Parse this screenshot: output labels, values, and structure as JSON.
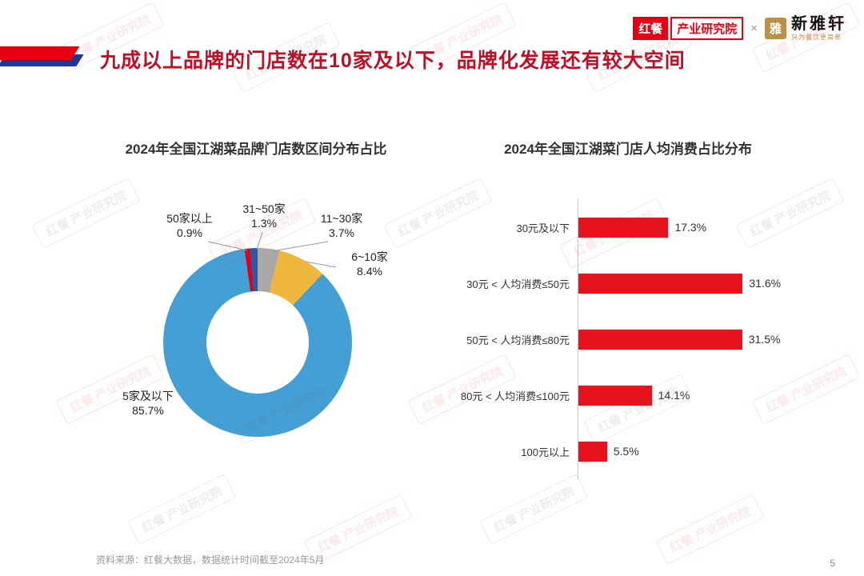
{
  "page": {
    "title": "九成以上品牌的门店数在10家及以下，品牌化发展还有较大空间",
    "source_note": "资料来源：红餐大数据，数据统计时间截至2024年5月",
    "page_number": "5"
  },
  "header": {
    "hongcan_logo": "红餐",
    "hongcan_org": "产业研究院",
    "separator": "×",
    "partner_icon": "雅",
    "partner_name": "新雅轩",
    "partner_tagline": "只为餐饮更简单"
  },
  "watermark": {
    "text": "红餐 产业研究院"
  },
  "colors": {
    "brand_red": "#E60012",
    "title_red": "#C30D23"
  },
  "chart_data": [
    {
      "type": "pie",
      "donut": true,
      "title": "2024年全国江湖菜品牌门店数区间分布占比",
      "labels": [
        "5家及以下",
        "6~10家",
        "11~30家",
        "31~50家",
        "50家以上"
      ],
      "values": [
        85.7,
        8.4,
        3.7,
        1.3,
        0.9
      ],
      "value_labels": [
        "85.7%",
        "8.4%",
        "3.7%",
        "1.3%",
        "0.9%"
      ],
      "colors": [
        "#449FD4",
        "#EFB73E",
        "#A9A9A9",
        "#2B5BA8",
        "#E60012"
      ],
      "legend_position": "none"
    },
    {
      "type": "bar",
      "orientation": "horizontal",
      "title": "2024年全国江湖菜门店人均消费占比分布",
      "categories": [
        "30元及以下",
        "30元 < 人均消费≤50元",
        "50元 < 人均消费≤80元",
        "80元 < 人均消费≤100元",
        "100元以上"
      ],
      "values": [
        17.3,
        31.6,
        31.5,
        14.1,
        5.5
      ],
      "value_labels": [
        "17.3%",
        "31.6%",
        "31.5%",
        "14.1%",
        "5.5%"
      ],
      "bar_color": "#E8121C",
      "xlim": [
        0,
        35
      ],
      "grid": false
    }
  ]
}
